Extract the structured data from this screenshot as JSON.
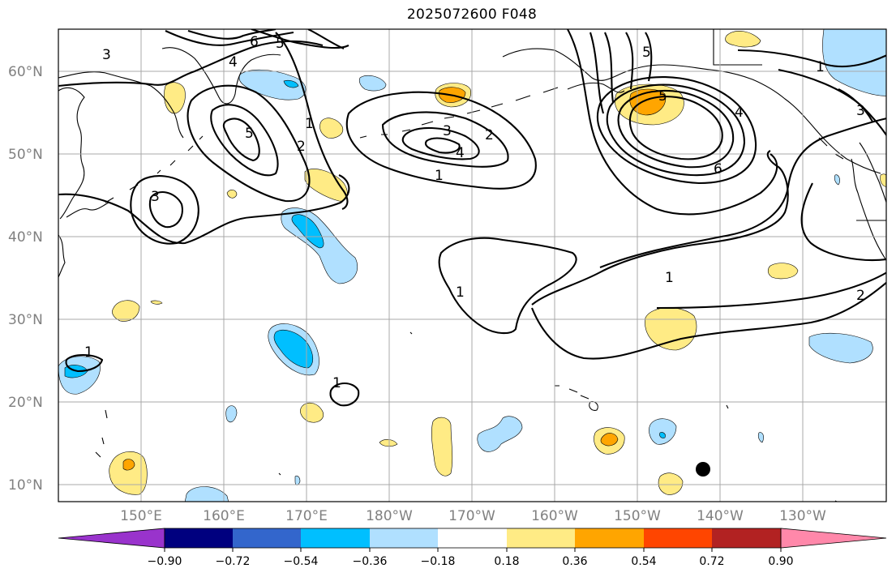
{
  "title": "2025072600 F048",
  "lat_labels": [
    "60°N",
    "50°N",
    "40°N",
    "30°N",
    "20°N",
    "10°N"
  ],
  "lon_labels": [
    "150°E",
    "160°E",
    "170°E",
    "180°W",
    "170°W",
    "160°W",
    "150°W",
    "140°W",
    "130°W"
  ],
  "colorbar": {
    "tick_labels": [
      "−0.90",
      "−0.72",
      "−0.54",
      "−0.36",
      "−0.18",
      "0.18",
      "0.36",
      "0.54",
      "0.72",
      "0.90"
    ],
    "colors": [
      "#9933cc",
      "#00007f",
      "#3366cc",
      "#00bfff",
      "#b0e0ff",
      "#ffffff",
      "#ffeb85",
      "#ffa500",
      "#ff4500",
      "#b22222",
      "#ff88aa"
    ]
  },
  "shading_colors": {
    "pos_light": "#ffeb85",
    "pos_mid": "#ffa500",
    "neg_light": "#b0e0ff",
    "neg_mid": "#00bfff"
  },
  "contour_labels": [
    "3",
    "6",
    "5",
    "4",
    "5",
    "2",
    "1",
    "3",
    "4",
    "2",
    "1",
    "3",
    "5",
    "5",
    "4",
    "6",
    "1",
    "1",
    "2",
    "3",
    "1",
    "1",
    "1"
  ],
  "marker": {
    "type": "filled-circle",
    "color": "#000000"
  }
}
